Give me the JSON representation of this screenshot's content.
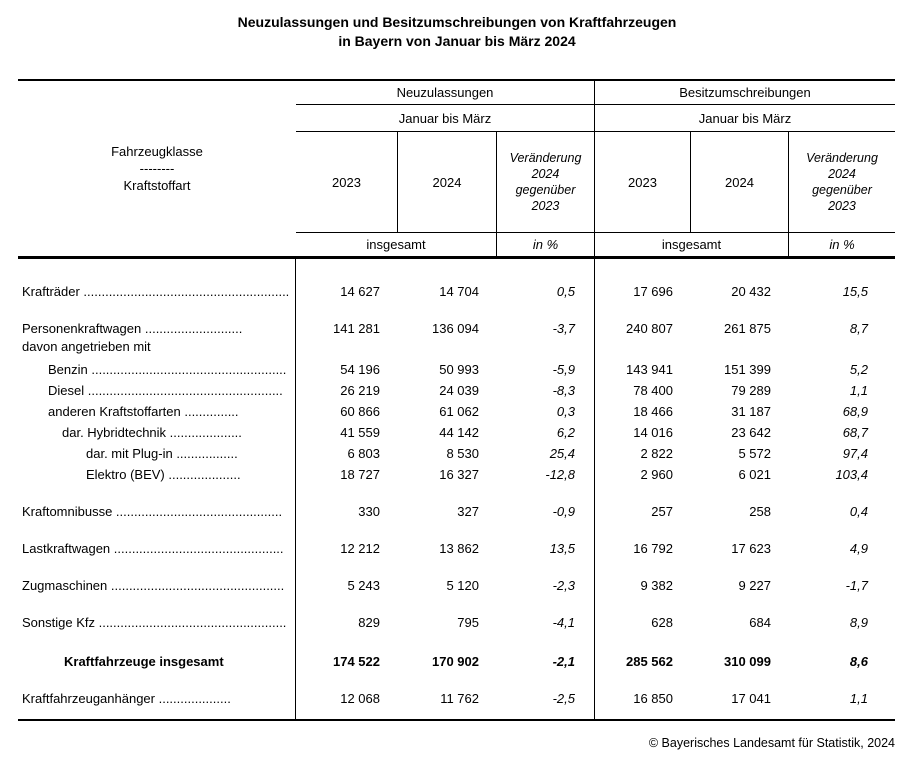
{
  "title": {
    "line1": "Neuzulassungen und Besitzumschreibungen von Kraftfahrzeugen",
    "line2": "in Bayern von Januar bis März 2024"
  },
  "header": {
    "col_label": {
      "line1": "Fahrzeugklasse",
      "divider": "--------",
      "line2": "Kraftstoffart"
    },
    "group1": "Neuzulassungen",
    "group2": "Besitzumschreibungen",
    "period": "Januar bis März",
    "year_2023": "2023",
    "year_2024": "2024",
    "change_label": "Veränderung\n2024\ngegenüber\n2023",
    "total_label": "insgesamt",
    "pct_label": "in %"
  },
  "rows": [
    {
      "label": "Krafträder .........................................................",
      "indent": 0,
      "style": "main",
      "values": [
        "14 627",
        "14 704",
        "0,5",
        "17 696",
        "20 432",
        "15,5"
      ]
    },
    {
      "label": "Personenkraftwagen ...........................",
      "sublabel": "davon angetrieben mit",
      "indent": 0,
      "style": "main",
      "values": [
        "141 281",
        "136 094",
        "-3,7",
        "240 807",
        "261 875",
        "8,7"
      ]
    },
    {
      "label": "Benzin ......................................................",
      "indent": 1,
      "style": "sub",
      "values": [
        "54 196",
        "50 993",
        "-5,9",
        "143 941",
        "151 399",
        "5,2"
      ]
    },
    {
      "label": "Diesel ......................................................",
      "indent": 1,
      "style": "sub",
      "values": [
        "26 219",
        "24 039",
        "-8,3",
        "78 400",
        "79 289",
        "1,1"
      ]
    },
    {
      "label": "anderen Kraftstoffarten ...............",
      "indent": 1,
      "style": "sub",
      "values": [
        "60 866",
        "61 062",
        "0,3",
        "18 466",
        "31 187",
        "68,9"
      ]
    },
    {
      "label": "dar. Hybridtechnik ....................",
      "indent": 2,
      "style": "sub",
      "values": [
        "41 559",
        "44 142",
        "6,2",
        "14 016",
        "23 642",
        "68,7"
      ]
    },
    {
      "label": "dar. mit Plug-in .................",
      "indent": 3,
      "style": "sub",
      "values": [
        "6 803",
        "8 530",
        "25,4",
        "2 822",
        "5 572",
        "97,4"
      ]
    },
    {
      "label": "Elektro (BEV) ....................",
      "indent": 3,
      "style": "sub",
      "values": [
        "18 727",
        "16 327",
        "-12,8",
        "2 960",
        "6 021",
        "103,4"
      ]
    },
    {
      "label": "Kraftomnibusse ..............................................",
      "indent": 0,
      "style": "main",
      "values": [
        "330",
        "327",
        "-0,9",
        "257",
        "258",
        "0,4"
      ]
    },
    {
      "label": "Lastkraftwagen ...............................................",
      "indent": 0,
      "style": "main",
      "values": [
        "12 212",
        "13 862",
        "13,5",
        "16 792",
        "17 623",
        "4,9"
      ]
    },
    {
      "label": "Zugmaschinen ................................................",
      "indent": 0,
      "style": "main",
      "values": [
        "5 243",
        "5 120",
        "-2,3",
        "9 382",
        "9 227",
        "-1,7"
      ]
    },
    {
      "label": "Sonstige Kfz ....................................................",
      "indent": 0,
      "style": "main",
      "values": [
        "829",
        "795",
        "-4,1",
        "628",
        "684",
        "8,9"
      ]
    },
    {
      "label": "Kraftfahrzeuge insgesamt",
      "indent": 0,
      "style": "total",
      "values": [
        "174 522",
        "170 902",
        "-2,1",
        "285 562",
        "310 099",
        "8,6"
      ]
    },
    {
      "label": "Kraftfahrzeuganhänger ....................",
      "indent": 0,
      "style": "main",
      "values": [
        "12 068",
        "11 762",
        "-2,5",
        "16 850",
        "17 041",
        "1,1"
      ]
    }
  ],
  "footer": "© Bayerisches Landesamt für Statistik, 2024"
}
